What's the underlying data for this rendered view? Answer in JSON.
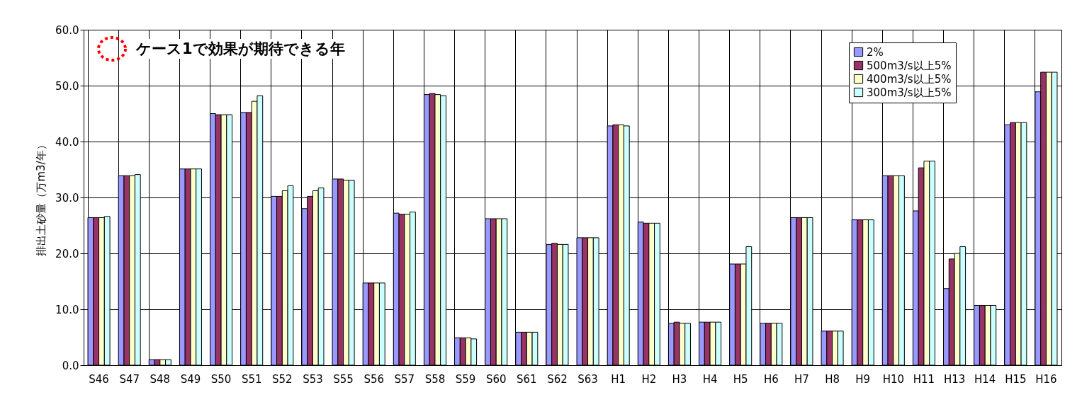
{
  "chart_data": {
    "type": "bar",
    "ylabel": "排出土砂量（万m3/年）",
    "annotations": [
      "ケース1で効果が期待できる年"
    ],
    "categories": [
      "S46",
      "S47",
      "S48",
      "S49",
      "S50",
      "S51",
      "S52",
      "S53",
      "S55",
      "S56",
      "S57",
      "S58",
      "S59",
      "S60",
      "S61",
      "S62",
      "S63",
      "H1",
      "H2",
      "H3",
      "H4",
      "H5",
      "H6",
      "H7",
      "H8",
      "H9",
      "H10",
      "H11",
      "H13",
      "H14",
      "H15",
      "H16"
    ],
    "series": [
      {
        "name": "2%",
        "color": "#9999ff",
        "values": [
          26.4,
          33.9,
          1.0,
          35.1,
          45.0,
          45.2,
          30.2,
          28.0,
          33.3,
          14.7,
          27.2,
          48.4,
          4.9,
          26.2,
          5.9,
          21.6,
          22.8,
          42.8,
          25.6,
          7.5,
          7.7,
          18.1,
          7.5,
          26.4,
          6.1,
          26.0,
          33.9,
          27.6,
          13.7,
          10.7,
          43.0,
          48.9
        ]
      },
      {
        "name": "500m3/s以上5%",
        "color": "#993366",
        "values": [
          26.4,
          33.9,
          1.0,
          35.1,
          44.8,
          45.2,
          30.2,
          30.2,
          33.3,
          14.7,
          27.0,
          48.6,
          4.9,
          26.2,
          5.9,
          21.8,
          22.8,
          43.0,
          25.4,
          7.7,
          7.7,
          18.1,
          7.5,
          26.4,
          6.1,
          26.0,
          33.9,
          35.3,
          19.0,
          10.7,
          43.4,
          52.4
        ]
      },
      {
        "name": "400m3/s以上5%",
        "color": "#ffffcc",
        "values": [
          26.4,
          33.9,
          1.0,
          35.1,
          44.8,
          47.2,
          31.2,
          31.2,
          33.1,
          14.7,
          27.0,
          48.4,
          4.9,
          26.2,
          5.9,
          21.6,
          22.8,
          43.0,
          25.4,
          7.5,
          7.7,
          18.1,
          7.5,
          26.4,
          6.1,
          26.0,
          33.9,
          36.5,
          20.0,
          10.7,
          43.4,
          52.4
        ]
      },
      {
        "name": "300m3/s以上5%",
        "color": "#ccffff",
        "values": [
          26.6,
          34.1,
          1.0,
          35.1,
          44.8,
          48.2,
          32.1,
          31.7,
          33.1,
          14.7,
          27.4,
          48.2,
          4.7,
          26.2,
          5.9,
          21.6,
          22.8,
          42.8,
          25.4,
          7.5,
          7.7,
          21.2,
          7.5,
          26.4,
          6.1,
          26.0,
          33.9,
          36.5,
          21.2,
          10.7,
          43.4,
          52.4
        ]
      }
    ],
    "ylim": [
      0,
      60
    ],
    "yticks": [
      {
        "value": 0,
        "label": "0.0"
      },
      {
        "value": 10,
        "label": "10.0"
      },
      {
        "value": 20,
        "label": "20.0"
      },
      {
        "value": 30,
        "label": "30.0"
      },
      {
        "value": 40,
        "label": "40.0"
      },
      {
        "value": 50,
        "label": "50.0"
      },
      {
        "value": 60,
        "label": "60.0"
      }
    ],
    "grid": true,
    "legend": "top right"
  }
}
